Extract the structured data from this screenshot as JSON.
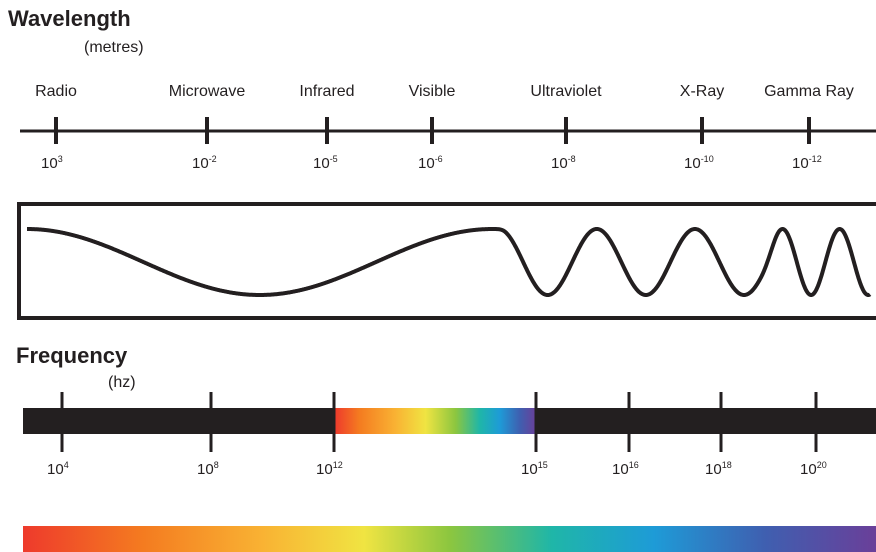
{
  "wavelength": {
    "title": "Wavelength",
    "unit": "(metres)",
    "bands": [
      {
        "label": "Radio",
        "base": "10",
        "exp": "3"
      },
      {
        "label": "Microwave",
        "base": "10",
        "exp": "-2"
      },
      {
        "label": "Infrared",
        "base": "10",
        "exp": "-5"
      },
      {
        "label": "Visible",
        "base": "10",
        "exp": "-6"
      },
      {
        "label": "Ultraviolet",
        "base": "10",
        "exp": "-8"
      },
      {
        "label": "X-Ray",
        "base": "10",
        "exp": "-10"
      },
      {
        "label": "Gamma Ray",
        "base": "10",
        "exp": "-12"
      }
    ]
  },
  "frequency": {
    "title": "Frequency",
    "unit": "(hz)",
    "ticks": [
      {
        "base": "10",
        "exp": "4"
      },
      {
        "base": "10",
        "exp": "8"
      },
      {
        "base": "10",
        "exp": "12"
      },
      {
        "base": "10",
        "exp": "15"
      },
      {
        "base": "10",
        "exp": "16"
      },
      {
        "base": "10",
        "exp": "18"
      },
      {
        "base": "10",
        "exp": "20"
      }
    ]
  },
  "colors": {
    "ink": "#231f20",
    "spectrum": [
      "#ee3a2c",
      "#f47b20",
      "#f9b233",
      "#f0e442",
      "#8cc63f",
      "#1fb6a8",
      "#1e9bd7",
      "#3f5fb0",
      "#6a3f99"
    ]
  }
}
